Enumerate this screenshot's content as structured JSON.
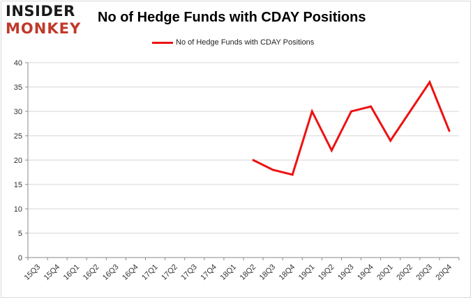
{
  "logo": {
    "line1": "INSIDER",
    "line2": "MONKEY"
  },
  "chart_data": {
    "type": "line",
    "title": "No of Hedge Funds with CDAY Positions",
    "xlabel": "",
    "ylabel": "",
    "categories": [
      "15Q3",
      "15Q4",
      "16Q1",
      "16Q2",
      "16Q3",
      "16Q4",
      "17Q1",
      "17Q2",
      "17Q3",
      "17Q4",
      "18Q1",
      "18Q2",
      "18Q3",
      "18Q4",
      "19Q1",
      "19Q2",
      "19Q3",
      "19Q4",
      "20Q1",
      "20Q2",
      "20Q3",
      "20Q4"
    ],
    "series": [
      {
        "name": "No of Hedge Funds with CDAY Positions",
        "color": "#ee1111",
        "values": [
          null,
          null,
          null,
          null,
          null,
          null,
          null,
          null,
          null,
          null,
          null,
          20,
          18,
          17,
          30,
          22,
          30,
          31,
          24,
          30,
          36,
          26
        ]
      }
    ],
    "ylim": [
      0,
      40
    ],
    "yticks": [
      0,
      5,
      10,
      15,
      20,
      25,
      30,
      35,
      40
    ],
    "grid": true,
    "legend_position": "top"
  }
}
